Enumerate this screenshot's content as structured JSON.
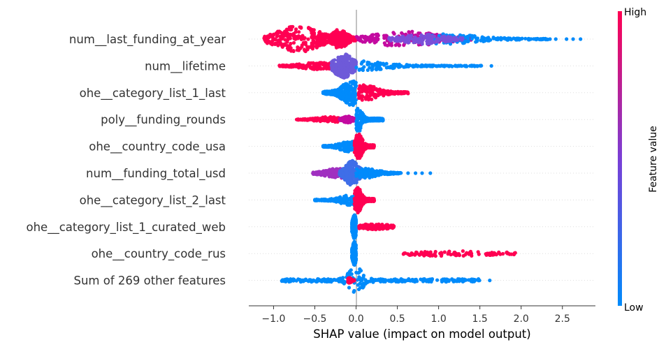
{
  "chart_data": {
    "type": "scatter",
    "subtype": "shap-beeswarm",
    "title": "",
    "xlabel": "SHAP value (impact on model output)",
    "ylabel": "",
    "xlim": [
      -1.3,
      2.9
    ],
    "xticks": [
      -1.0,
      -0.5,
      0.0,
      0.5,
      1.0,
      1.5,
      2.0,
      2.5
    ],
    "xtick_labels": [
      "−1.0",
      "−0.5",
      "0.0",
      "0.5",
      "1.0",
      "1.5",
      "2.0",
      "2.5"
    ],
    "grid": false,
    "colorbar": {
      "label": "Feature value",
      "high_label": "High",
      "low_label": "Low",
      "low_color": "#008bfb",
      "high_color": "#ff0052"
    },
    "features": [
      {
        "name": "num__last_funding_at_year",
        "min": -1.13,
        "max": 2.72,
        "outliers": [
          2.35,
          2.42,
          2.55,
          2.63,
          2.72
        ],
        "bands": [
          {
            "lo": -1.12,
            "hi": -0.1,
            "color": "#ff0052",
            "peak": -0.7,
            "spread": 0.22,
            "h": 0.95
          },
          {
            "lo": -0.3,
            "hi": 0.0,
            "color": "#ff0052",
            "peak": -0.2,
            "spread": 0.08,
            "h": 0.7
          },
          {
            "lo": 0.0,
            "hi": 1.4,
            "color": "#c30aa0",
            "peak": 0.6,
            "spread": 0.35,
            "h": 0.55
          },
          {
            "lo": 0.9,
            "hi": 2.35,
            "color": "#008bfb",
            "peak": 1.1,
            "spread": 0.35,
            "h": 0.35
          },
          {
            "lo": 0.4,
            "hi": 1.3,
            "color": "#7a4fd8",
            "peak": 0.8,
            "spread": 0.25,
            "h": 0.35
          }
        ]
      },
      {
        "name": "num__lifetime",
        "min": -0.93,
        "max": 1.64,
        "outliers": [
          1.64
        ],
        "bands": [
          {
            "lo": -0.93,
            "hi": -0.3,
            "color": "#ff0052",
            "peak": -0.45,
            "spread": 0.2,
            "h": 0.25
          },
          {
            "lo": -0.3,
            "hi": 0.0,
            "color": "#6e5ad9",
            "peak": -0.15,
            "spread": 0.1,
            "h": 0.85
          },
          {
            "lo": 0.0,
            "hi": 1.55,
            "color": "#008bfb",
            "peak": 0.05,
            "spread": 0.3,
            "h": 0.35
          }
        ]
      },
      {
        "name": "ohe__category_list_1_last",
        "min": -0.4,
        "max": 0.63,
        "outliers": [],
        "bands": [
          {
            "lo": -0.4,
            "hi": 0.0,
            "color": "#008bfb",
            "peak": -0.05,
            "spread": 0.1,
            "h": 0.9
          },
          {
            "lo": 0.03,
            "hi": 0.63,
            "color": "#ff0052",
            "peak": 0.1,
            "spread": 0.15,
            "h": 0.55
          }
        ]
      },
      {
        "name": "poly__funding_rounds",
        "min": -0.72,
        "max": 0.33,
        "outliers": [],
        "bands": [
          {
            "lo": -0.72,
            "hi": -0.2,
            "color": "#ff0052",
            "peak": -0.3,
            "spread": 0.15,
            "h": 0.2
          },
          {
            "lo": -0.2,
            "hi": 0.0,
            "color": "#c30aa0",
            "peak": -0.1,
            "spread": 0.05,
            "h": 0.25
          },
          {
            "lo": 0.0,
            "hi": 0.33,
            "color": "#008bfb",
            "peak": 0.03,
            "spread": 0.04,
            "h": 0.85
          }
        ]
      },
      {
        "name": "ohe__country_code_usa",
        "min": -0.4,
        "max": 0.22,
        "outliers": [],
        "bands": [
          {
            "lo": -0.4,
            "hi": -0.02,
            "color": "#008bfb",
            "peak": -0.08,
            "spread": 0.1,
            "h": 0.4
          },
          {
            "lo": -0.02,
            "hi": 0.22,
            "color": "#ff0052",
            "peak": 0.03,
            "spread": 0.04,
            "h": 0.9
          }
        ]
      },
      {
        "name": "num__funding_total_usd",
        "min": -0.53,
        "max": 0.9,
        "outliers": [
          0.63,
          0.72,
          0.8,
          0.9
        ],
        "bands": [
          {
            "lo": -0.53,
            "hi": -0.1,
            "color": "#a030c0",
            "peak": -0.2,
            "spread": 0.15,
            "h": 0.35
          },
          {
            "lo": -0.2,
            "hi": 0.1,
            "color": "#3f6ee8",
            "peak": -0.05,
            "spread": 0.07,
            "h": 0.9
          },
          {
            "lo": 0.0,
            "hi": 0.55,
            "color": "#008bfb",
            "peak": 0.1,
            "spread": 0.15,
            "h": 0.35
          }
        ]
      },
      {
        "name": "ohe__category_list_2_last",
        "min": -0.5,
        "max": 0.22,
        "outliers": [],
        "bands": [
          {
            "lo": -0.5,
            "hi": -0.02,
            "color": "#008bfb",
            "peak": -0.05,
            "spread": 0.12,
            "h": 0.4
          },
          {
            "lo": -0.02,
            "hi": 0.22,
            "color": "#ff0052",
            "peak": 0.02,
            "spread": 0.04,
            "h": 0.9
          }
        ]
      },
      {
        "name": "ohe__category_list_1_curated_web",
        "min": -0.05,
        "max": 0.46,
        "outliers": [],
        "bands": [
          {
            "lo": -0.05,
            "hi": 0.0,
            "color": "#008bfb",
            "peak": -0.02,
            "spread": 0.02,
            "h": 0.85
          },
          {
            "lo": 0.03,
            "hi": 0.46,
            "color": "#ff0052",
            "peak": 0.2,
            "spread": 0.2,
            "h": 0.2
          }
        ]
      },
      {
        "name": "ohe__country_code_rus",
        "min": -0.05,
        "max": 1.93,
        "outliers": [],
        "bands": [
          {
            "lo": -0.05,
            "hi": 0.0,
            "color": "#008bfb",
            "peak": -0.02,
            "spread": 0.02,
            "h": 0.85
          },
          {
            "lo": 0.57,
            "hi": 1.93,
            "color": "#ff0052",
            "peak": 1.2,
            "spread": 0.5,
            "h": 0.2
          }
        ]
      },
      {
        "name": "Sum of 269 other features",
        "min": -0.9,
        "max": 1.62,
        "outliers": [
          1.62
        ],
        "bands": [
          {
            "lo": -0.9,
            "hi": 1.5,
            "color": "#008bfb",
            "peak": 0.0,
            "spread": 0.08,
            "h": 0.95
          },
          {
            "lo": -0.1,
            "hi": -0.02,
            "color": "#ff0052",
            "peak": -0.08,
            "spread": 0.02,
            "h": 0.2
          }
        ]
      }
    ]
  }
}
